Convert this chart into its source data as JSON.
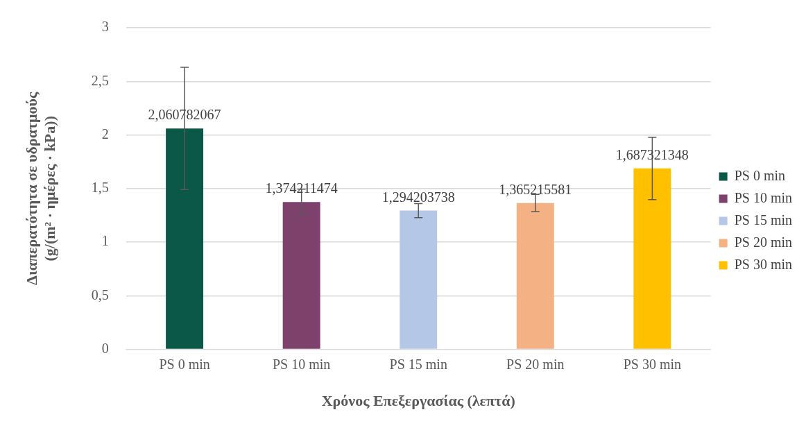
{
  "chart_data": {
    "type": "bar",
    "xlabel": "Χρόνος Επεξεργασίας (λεπτά)",
    "ylabel": "Διαπερατότητα σε υδρατμούς\n(g/(m² · ημέρες · kPa))",
    "categories": [
      "PS 0 min",
      "PS 10 min",
      "PS 15 min",
      "PS 20 min",
      "PS 30 min"
    ],
    "series": [
      {
        "name": "PS 0 min",
        "color": "#0b5748",
        "values": [
          2.060782067,
          null,
          null,
          null,
          null
        ],
        "errors": [
          0.57,
          null,
          null,
          null,
          null
        ],
        "value_labels": [
          "2,060782067",
          null,
          null,
          null,
          null
        ]
      },
      {
        "name": "PS 10 min",
        "color": "#7d416c",
        "values": [
          null,
          1.374211474,
          null,
          null,
          null
        ],
        "errors": [
          null,
          0.12,
          null,
          null,
          null
        ],
        "value_labels": [
          null,
          "1,374211474",
          null,
          null,
          null
        ]
      },
      {
        "name": "PS 15 min",
        "color": "#b4c7e7",
        "values": [
          null,
          null,
          1.294203738,
          null,
          null
        ],
        "errors": [
          null,
          null,
          0.065,
          null,
          null
        ],
        "value_labels": [
          null,
          null,
          "1,294203738",
          null,
          null
        ]
      },
      {
        "name": "PS 20 min",
        "color": "#f4b183",
        "values": [
          null,
          null,
          null,
          1.365215581,
          null
        ],
        "errors": [
          null,
          null,
          null,
          0.08,
          null
        ],
        "value_labels": [
          null,
          null,
          null,
          "1,365215581",
          null
        ]
      },
      {
        "name": "PS 30 min",
        "color": "#ffc000",
        "values": [
          null,
          null,
          null,
          null,
          1.687321348
        ],
        "errors": [
          null,
          null,
          null,
          null,
          0.29
        ],
        "value_labels": [
          null,
          null,
          null,
          null,
          "1,687321348"
        ]
      }
    ],
    "ylim": [
      0,
      3
    ],
    "yticks": [
      0,
      {
        "value": 0.5,
        "label": "0,5"
      },
      1,
      {
        "value": 1.5,
        "label": "1,5"
      },
      2,
      {
        "value": 2.5,
        "label": "2,5"
      },
      3
    ],
    "grid": "y",
    "legend": "right"
  }
}
